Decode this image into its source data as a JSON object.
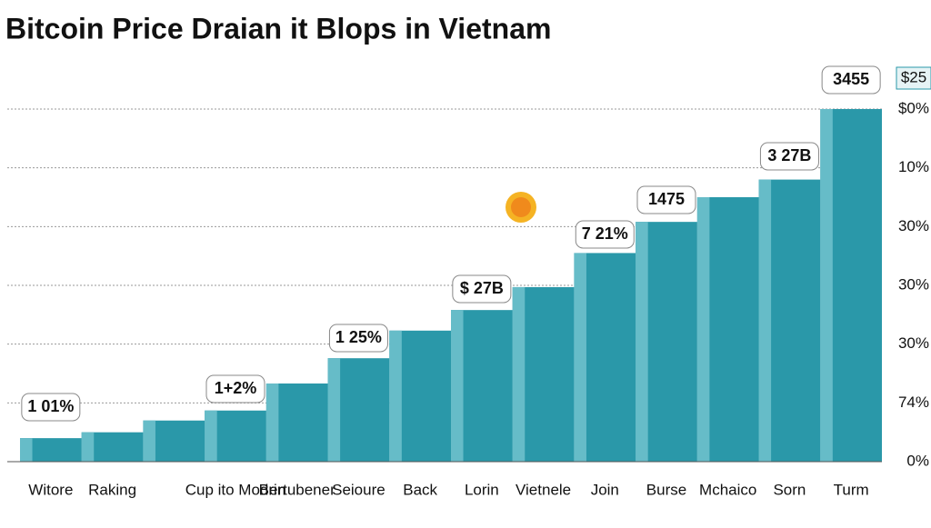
{
  "chart_data": {
    "type": "bar",
    "title": "Bitcoin Price Draian it Blops in Vietnam",
    "categories": [
      "Witore",
      "Raking",
      null,
      "Cup ito Modrin",
      "Bertubener",
      "Seioure",
      "Back",
      "Lorin",
      "Vietnele",
      "Join",
      "Burse",
      "Mchaico",
      "Sorn",
      "Turm"
    ],
    "values": [
      0.4,
      0.5,
      0.7,
      0.87,
      1.33,
      1.76,
      2.23,
      2.58,
      2.97,
      3.55,
      4.08,
      4.5,
      4.8,
      6.0
    ],
    "color": "#2a98a9",
    "ylim": [
      0,
      6
    ],
    "yticks": [
      {
        "value": 0,
        "label": "0%"
      },
      {
        "value": 1,
        "label": "74%"
      },
      {
        "value": 2,
        "label": "30%"
      },
      {
        "value": 3,
        "label": "30%"
      },
      {
        "value": 4,
        "label": "30%"
      },
      {
        "value": 5,
        "label": "10%"
      },
      {
        "value": 6,
        "label": "$0%"
      }
    ],
    "grid": true,
    "annotations": [
      "1 01%",
      "1+2%",
      "1 25%",
      "$ 27B",
      "7 21%",
      "1475",
      "3 27B",
      "3455",
      "$25"
    ]
  }
}
